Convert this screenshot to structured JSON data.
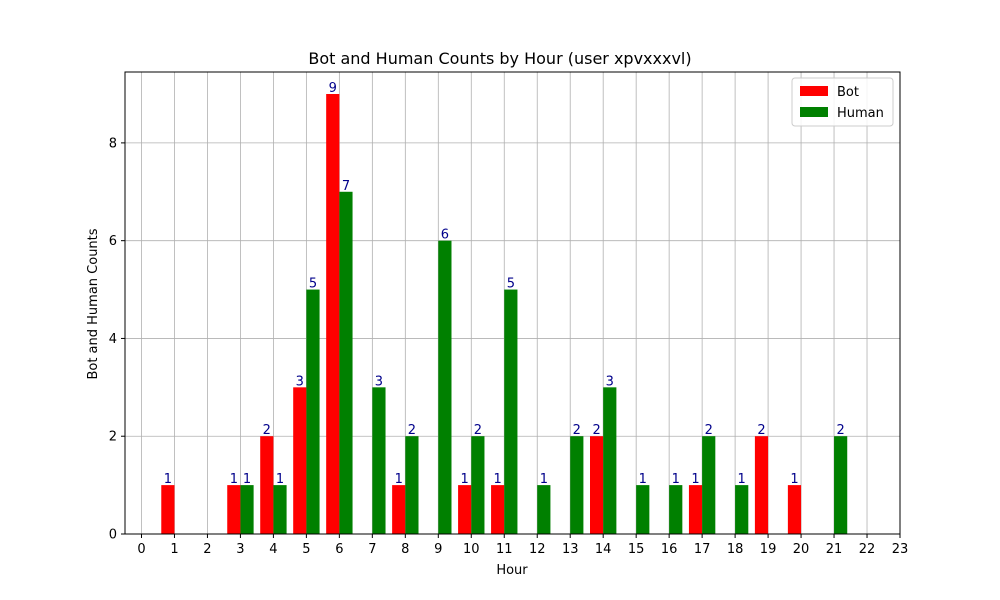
{
  "chart_data": {
    "type": "bar",
    "title": "Bot and Human Counts by Hour (user xpvxxxvl)",
    "xlabel": "Hour",
    "ylabel": "Bot and Human Counts",
    "x": [
      0,
      1,
      2,
      3,
      4,
      5,
      6,
      7,
      8,
      9,
      10,
      11,
      12,
      13,
      14,
      15,
      16,
      17,
      18,
      19,
      20,
      21,
      22,
      23
    ],
    "xlim": [
      -0.5,
      23
    ],
    "ylim": [
      0,
      9.45
    ],
    "yticks": [
      0,
      2,
      4,
      6,
      8
    ],
    "grid": true,
    "legend": "top-right",
    "series": [
      {
        "name": "Bot",
        "color": "#ff0000",
        "values": [
          0,
          1,
          0,
          1,
          2,
          3,
          9,
          0,
          1,
          0,
          1,
          1,
          0,
          0,
          2,
          0,
          0,
          1,
          0,
          2,
          1,
          0,
          0,
          0
        ]
      },
      {
        "name": "Human",
        "color": "#008000",
        "values": [
          0,
          0,
          0,
          1,
          1,
          5,
          7,
          3,
          2,
          6,
          2,
          5,
          1,
          2,
          3,
          1,
          1,
          2,
          1,
          0,
          0,
          2,
          0,
          0
        ]
      }
    ],
    "label_color": "#00008b"
  }
}
